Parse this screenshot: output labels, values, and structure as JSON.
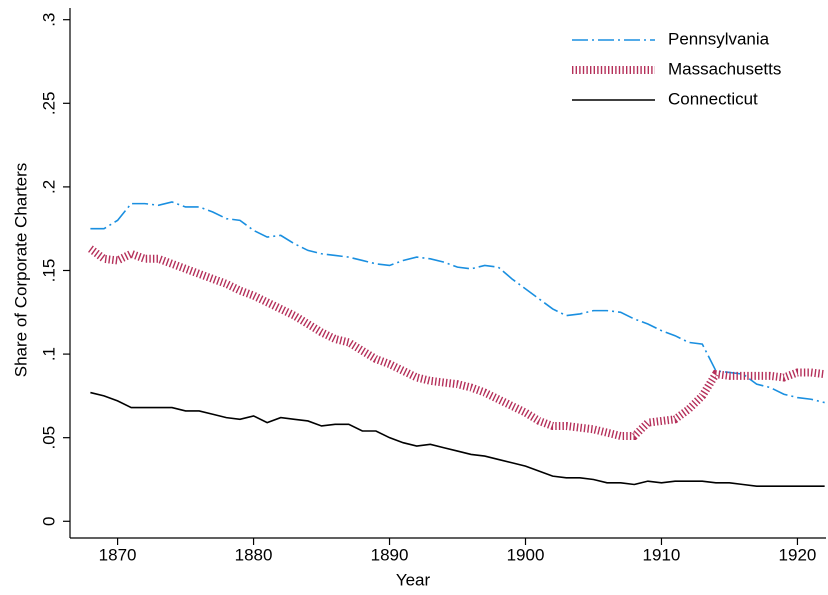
{
  "chart_data": {
    "type": "line",
    "xlabel": "Year",
    "ylabel": "Share of Corporate Charters",
    "x": [
      1868,
      1869,
      1870,
      1871,
      1872,
      1873,
      1874,
      1875,
      1876,
      1877,
      1878,
      1879,
      1880,
      1881,
      1882,
      1883,
      1884,
      1885,
      1886,
      1887,
      1888,
      1889,
      1890,
      1891,
      1892,
      1893,
      1894,
      1895,
      1896,
      1897,
      1898,
      1899,
      1900,
      1901,
      1902,
      1903,
      1904,
      1905,
      1906,
      1907,
      1908,
      1909,
      1910,
      1911,
      1912,
      1913,
      1914,
      1915,
      1916,
      1917,
      1918,
      1919,
      1920,
      1921,
      1922
    ],
    "series": [
      {
        "name": "Pennsylvania",
        "color": "#1a8fe0",
        "line_style": "dash-dot",
        "values": [
          0.175,
          0.175,
          0.18,
          0.19,
          0.19,
          0.189,
          0.191,
          0.188,
          0.188,
          0.185,
          0.181,
          0.18,
          0.174,
          0.17,
          0.171,
          0.166,
          0.162,
          0.16,
          0.159,
          0.158,
          0.156,
          0.154,
          0.153,
          0.156,
          0.158,
          0.157,
          0.155,
          0.152,
          0.151,
          0.153,
          0.152,
          0.145,
          0.139,
          0.133,
          0.127,
          0.123,
          0.124,
          0.126,
          0.126,
          0.125,
          0.121,
          0.118,
          0.114,
          0.111,
          0.107,
          0.106,
          0.09,
          0.089,
          0.088,
          0.082,
          0.08,
          0.076,
          0.074,
          0.073,
          0.071
        ]
      },
      {
        "name": "Massachusetts",
        "color": "#b5305a",
        "line_style": "dotted",
        "values": [
          0.163,
          0.157,
          0.156,
          0.16,
          0.157,
          0.157,
          0.154,
          0.151,
          0.148,
          0.145,
          0.142,
          0.138,
          0.135,
          0.131,
          0.127,
          0.123,
          0.118,
          0.113,
          0.109,
          0.107,
          0.102,
          0.097,
          0.094,
          0.09,
          0.086,
          0.084,
          0.083,
          0.082,
          0.08,
          0.077,
          0.073,
          0.069,
          0.065,
          0.06,
          0.057,
          0.057,
          0.056,
          0.055,
          0.053,
          0.051,
          0.051,
          0.059,
          0.06,
          0.061,
          0.067,
          0.075,
          0.088,
          0.087,
          0.087,
          0.087,
          0.087,
          0.086,
          0.089,
          0.089,
          0.088
        ]
      },
      {
        "name": "Connecticut",
        "color": "#000000",
        "line_style": "solid",
        "values": [
          0.077,
          0.075,
          0.072,
          0.068,
          0.068,
          0.068,
          0.068,
          0.066,
          0.066,
          0.064,
          0.062,
          0.061,
          0.063,
          0.059,
          0.062,
          0.061,
          0.06,
          0.057,
          0.058,
          0.058,
          0.054,
          0.054,
          0.05,
          0.047,
          0.045,
          0.046,
          0.044,
          0.042,
          0.04,
          0.039,
          0.037,
          0.035,
          0.033,
          0.03,
          0.027,
          0.026,
          0.026,
          0.025,
          0.023,
          0.023,
          0.022,
          0.024,
          0.023,
          0.024,
          0.024,
          0.024,
          0.023,
          0.023,
          0.022,
          0.021,
          0.021,
          0.021,
          0.021,
          0.021,
          0.021
        ]
      }
    ],
    "xlim": [
      1866.5,
      1922.1
    ],
    "xticks": [
      1870,
      1880,
      1890,
      1900,
      1910,
      1920
    ],
    "ylim": [
      -0.01,
      0.307
    ],
    "yticks": [
      0,
      {
        "value": 0.05,
        "label": ".05"
      },
      {
        "value": 0.1,
        "label": ".1"
      },
      {
        "value": 0.15,
        "label": ".15"
      },
      {
        "value": 0.2,
        "label": ".2"
      },
      {
        "value": 0.25,
        "label": ".25"
      },
      {
        "value": 0.3,
        "label": ".3"
      }
    ],
    "grid": false,
    "legend": "upper right"
  }
}
